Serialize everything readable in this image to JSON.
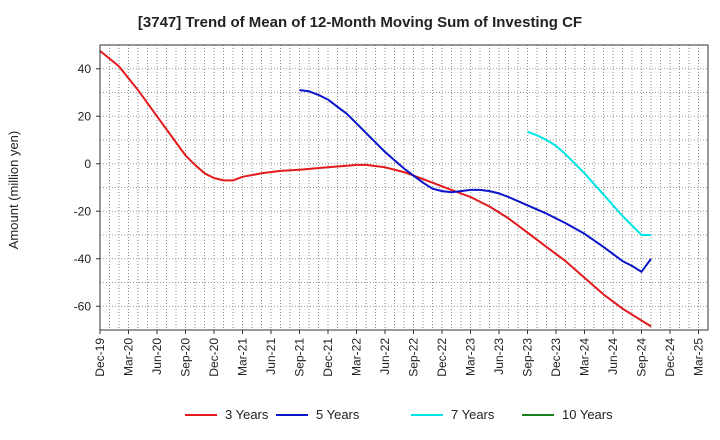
{
  "chart_data": {
    "type": "line",
    "title": "[3747]  Trend of Mean of 12-Month Moving Sum of Investing CF",
    "xlabel": "",
    "ylabel": "Amount (million yen)",
    "ylim": [
      -70,
      50
    ],
    "yticks": [
      40,
      20,
      0,
      -20,
      -40,
      -60
    ],
    "x_ticks": [
      "Dec-19",
      "Mar-20",
      "Jun-20",
      "Sep-20",
      "Dec-20",
      "Mar-21",
      "Jun-21",
      "Sep-21",
      "Dec-21",
      "Mar-22",
      "Jun-22",
      "Sep-22",
      "Dec-22",
      "Mar-23",
      "Jun-23",
      "Sep-23",
      "Dec-23",
      "Mar-24",
      "Jun-24",
      "Sep-24",
      "Dec-24",
      "Mar-25"
    ],
    "x_positions": [
      0,
      3,
      6,
      9,
      12,
      15,
      18,
      21,
      24,
      27,
      30,
      33,
      36,
      39,
      42,
      45,
      48,
      51,
      54,
      57,
      60,
      63
    ],
    "grid": true,
    "legend_position": "bottom",
    "series": [
      {
        "name": "3 Years",
        "color": "#e31a1c",
        "points": [
          [
            0,
            47.5
          ],
          [
            2,
            41
          ],
          [
            4,
            31
          ],
          [
            6,
            20
          ],
          [
            8,
            9
          ],
          [
            9,
            3.5
          ],
          [
            10,
            -0.5
          ],
          [
            11,
            -4
          ],
          [
            12,
            -6
          ],
          [
            13,
            -7
          ],
          [
            14,
            -7
          ],
          [
            15,
            -5.5
          ],
          [
            17,
            -4
          ],
          [
            19,
            -3
          ],
          [
            21,
            -2.5
          ],
          [
            24,
            -1.5
          ],
          [
            26,
            -0.8
          ],
          [
            27,
            -0.5
          ],
          [
            28,
            -0.5
          ],
          [
            30,
            -1.5
          ],
          [
            32,
            -3.5
          ],
          [
            33,
            -5
          ],
          [
            35,
            -8
          ],
          [
            37,
            -11
          ],
          [
            39,
            -14
          ],
          [
            41,
            -18
          ],
          [
            43,
            -23
          ],
          [
            45,
            -29
          ],
          [
            47,
            -35
          ],
          [
            49,
            -41
          ],
          [
            51,
            -48
          ],
          [
            53,
            -55
          ],
          [
            55,
            -61
          ],
          [
            57,
            -66
          ],
          [
            58,
            -68.5
          ]
        ]
      },
      {
        "name": "5 Years",
        "color": "#0a14c8",
        "points": [
          [
            21,
            31
          ],
          [
            22,
            30.5
          ],
          [
            23,
            29
          ],
          [
            24,
            27
          ],
          [
            25,
            24
          ],
          [
            26,
            21
          ],
          [
            27,
            17
          ],
          [
            28,
            13
          ],
          [
            29,
            9
          ],
          [
            30,
            5
          ],
          [
            31,
            1.5
          ],
          [
            32,
            -2
          ],
          [
            33,
            -5
          ],
          [
            34,
            -8
          ],
          [
            35,
            -10.5
          ],
          [
            36,
            -11.5
          ],
          [
            37,
            -12
          ],
          [
            38,
            -11.5
          ],
          [
            39,
            -11
          ],
          [
            40,
            -11
          ],
          [
            41,
            -11.5
          ],
          [
            42,
            -12.5
          ],
          [
            43,
            -14
          ],
          [
            45,
            -17.5
          ],
          [
            47,
            -21
          ],
          [
            49,
            -25
          ],
          [
            51,
            -29.5
          ],
          [
            53,
            -35
          ],
          [
            55,
            -41
          ],
          [
            56,
            -43
          ],
          [
            57,
            -45.5
          ],
          [
            58,
            -40
          ]
        ]
      },
      {
        "name": "7 Years",
        "color": "#00e5e5",
        "points": [
          [
            45,
            13.5
          ],
          [
            46,
            12
          ],
          [
            47,
            10
          ],
          [
            48,
            7.5
          ],
          [
            49,
            4
          ],
          [
            50,
            0
          ],
          [
            51,
            -4
          ],
          [
            52,
            -8.5
          ],
          [
            53,
            -13
          ],
          [
            54,
            -17.5
          ],
          [
            55,
            -22
          ],
          [
            56,
            -26
          ],
          [
            57,
            -30
          ],
          [
            58,
            -30
          ]
        ]
      },
      {
        "name": "10 Years",
        "color": "#1b7f1b",
        "points": []
      }
    ]
  }
}
